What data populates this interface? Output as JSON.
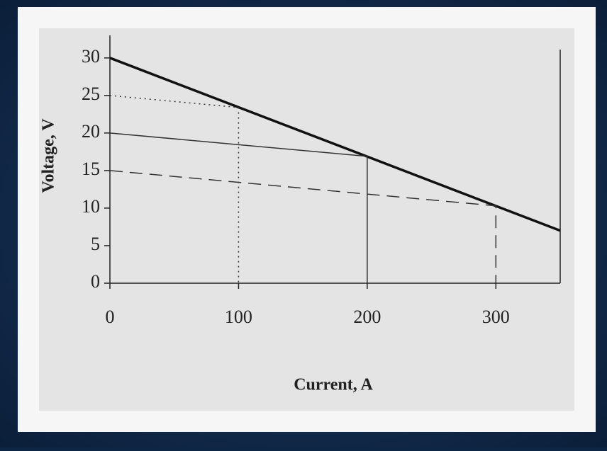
{
  "chart_data": {
    "type": "line",
    "x_label": "Current, A",
    "y_label": "Voltage, V",
    "xlim": [
      0,
      350
    ],
    "ylim": [
      0,
      33
    ],
    "xticks": [
      0,
      100,
      200,
      300
    ],
    "yticks": [
      0,
      5,
      10,
      15,
      20,
      25,
      30
    ],
    "series": [
      {
        "color": "#111111",
        "width": 3.5,
        "dash": "solid",
        "x": [
          0,
          350
        ],
        "values": [
          30,
          7
        ]
      },
      {
        "color": "#333333",
        "width": 1.5,
        "dash": "dotted",
        "x": [
          0,
          100,
          100
        ],
        "values": [
          25,
          23.4,
          0
        ]
      },
      {
        "color": "#333333",
        "width": 1.5,
        "dash": "solid",
        "x": [
          0,
          200,
          200
        ],
        "values": [
          20,
          16.9,
          0
        ]
      },
      {
        "color": "#333333",
        "width": 1.5,
        "dash": "dashed",
        "x": [
          0,
          300,
          300
        ],
        "values": [
          15,
          10.3,
          0
        ]
      }
    ]
  }
}
